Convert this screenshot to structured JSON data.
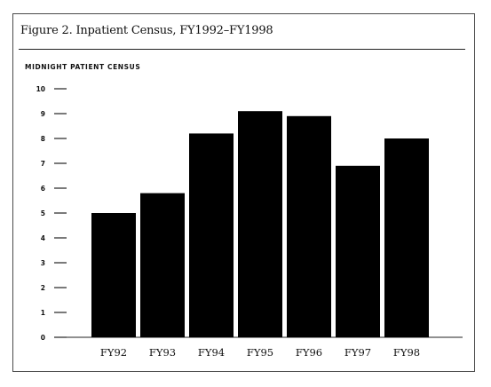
{
  "chart_data": {
    "type": "bar",
    "title": "Figure 2. Inpatient Census, FY1992–FY1998",
    "ylabel": "MIDNIGHT PATIENT CENSUS",
    "xlabel": "",
    "categories": [
      "FY92",
      "FY93",
      "FY94",
      "FY95",
      "FY96",
      "FY97",
      "FY98"
    ],
    "values": [
      5.0,
      5.8,
      8.2,
      9.1,
      8.9,
      6.9,
      8.0
    ],
    "ylim": [
      0,
      10
    ],
    "yticks": [
      "0",
      "1",
      "2",
      "3",
      "4",
      "5",
      "6",
      "7",
      "8",
      "9",
      "10"
    ],
    "bar_color": "#000000",
    "grid": false,
    "legend": "none"
  }
}
